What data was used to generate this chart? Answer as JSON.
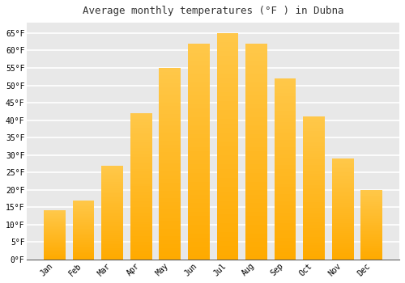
{
  "title": "Average monthly temperatures (°F ) in Dubna",
  "months": [
    "Jan",
    "Feb",
    "Mar",
    "Apr",
    "May",
    "Jun",
    "Jul",
    "Aug",
    "Sep",
    "Oct",
    "Nov",
    "Dec"
  ],
  "values": [
    14,
    17,
    27,
    42,
    55,
    62,
    65,
    62,
    52,
    41,
    29,
    20
  ],
  "bar_color": "#FFAA00",
  "bar_color_light": "#FFC84A",
  "ylim": [
    0,
    68
  ],
  "yticks": [
    0,
    5,
    10,
    15,
    20,
    25,
    30,
    35,
    40,
    45,
    50,
    55,
    60,
    65
  ],
  "figure_bg": "#ffffff",
  "plot_bg": "#e8e8e8",
  "grid_color": "#ffffff",
  "title_fontsize": 9,
  "tick_fontsize": 7,
  "font_family": "monospace",
  "bar_width": 0.75
}
